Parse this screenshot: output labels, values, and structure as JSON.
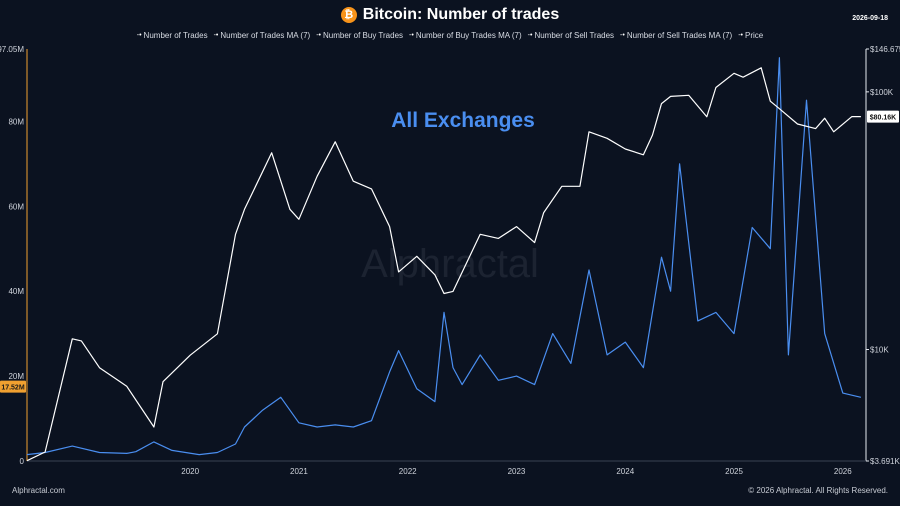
{
  "header": {
    "title": "Bitcoin: Number of trades",
    "date": "2026-09-18",
    "coin_icon": "bitcoin-icon",
    "coin_symbol": "₿"
  },
  "legend": [
    {
      "label": "Number of Trades"
    },
    {
      "label": "Number of Trades MA (7)"
    },
    {
      "label": "Number of Buy Trades"
    },
    {
      "label": "Number of Buy Trades MA (7)"
    },
    {
      "label": "Number of Sell Trades"
    },
    {
      "label": "Number of Sell Trades MA (7)"
    },
    {
      "label": "Price"
    }
  ],
  "annotation": "All Exchanges",
  "watermark": "Alphractal",
  "footer": {
    "left": "Alphractal.com",
    "right": "© 2026 Alphractal. All Rights Reserved."
  },
  "colors": {
    "background": "#0b1220",
    "trades": "#4a8ef0",
    "price": "#ffffff",
    "left_axis": "#f0a030",
    "badge_left": "#f0a030"
  },
  "chart_data": {
    "type": "line",
    "x_axis": {
      "ticks": [
        "2020",
        "2021",
        "2022",
        "2023",
        "2024",
        "2025",
        "2026"
      ],
      "range": [
        "2019-01-01",
        "2026-09-18"
      ]
    },
    "left_axis": {
      "ticks": [
        "0",
        "20M",
        "40M",
        "60M",
        "80M",
        "97.05M"
      ],
      "tick_values": [
        0,
        20000000,
        40000000,
        60000000,
        80000000,
        97050000
      ],
      "range": [
        0,
        97050000
      ]
    },
    "right_axis": {
      "scale": "log",
      "ticks": [
        "$3.691K",
        "$10K",
        "$100K",
        "$146.675K"
      ],
      "tick_values": [
        3691,
        10000,
        100000,
        146675
      ],
      "range": [
        3691,
        146675
      ]
    },
    "badges": {
      "left": "17.52M",
      "right": "$80.16K"
    },
    "series": [
      {
        "name": "Number of Trades",
        "axis": "left",
        "x": [
          "2019-01",
          "2019-03",
          "2019-06",
          "2019-09",
          "2019-12",
          "2020-01",
          "2020-03",
          "2020-05",
          "2020-08",
          "2020-10",
          "2020-12",
          "2021-01",
          "2021-03",
          "2021-05",
          "2021-07",
          "2021-09",
          "2021-11",
          "2022-01",
          "2022-03",
          "2022-05",
          "2022-06",
          "2022-08",
          "2022-10",
          "2022-11",
          "2022-12",
          "2023-01",
          "2023-03",
          "2023-05",
          "2023-07",
          "2023-09",
          "2023-11",
          "2024-01",
          "2024-03",
          "2024-05",
          "2024-07",
          "2024-09",
          "2024-11",
          "2024-12",
          "2025-01",
          "2025-03",
          "2025-05",
          "2025-07",
          "2025-09",
          "2025-11",
          "2025-12",
          "2026-01",
          "2026-03",
          "2026-05",
          "2026-07",
          "2026-09"
        ],
        "values": [
          1500000,
          2000000,
          3500000,
          2000000,
          1800000,
          2200000,
          4500000,
          2500000,
          1500000,
          2000000,
          4000000,
          8000000,
          12000000,
          15000000,
          9000000,
          8000000,
          8500000,
          8000000,
          9500000,
          21000000,
          26000000,
          17000000,
          14000000,
          35000000,
          22000000,
          18000000,
          25000000,
          19000000,
          20000000,
          18000000,
          30000000,
          23000000,
          45000000,
          25000000,
          28000000,
          22000000,
          48000000,
          40000000,
          70000000,
          33000000,
          35000000,
          30000000,
          55000000,
          50000000,
          95000000,
          25000000,
          85000000,
          30000000,
          16000000,
          15000000
        ]
      },
      {
        "name": "Price",
        "axis": "right",
        "x": [
          "2019-01",
          "2019-03",
          "2019-06",
          "2019-07",
          "2019-09",
          "2019-12",
          "2020-03",
          "2020-04",
          "2020-07",
          "2020-10",
          "2020-12",
          "2021-01",
          "2021-04",
          "2021-06",
          "2021-07",
          "2021-09",
          "2021-11",
          "2022-01",
          "2022-03",
          "2022-05",
          "2022-06",
          "2022-08",
          "2022-10",
          "2022-11",
          "2022-12",
          "2023-03",
          "2023-05",
          "2023-07",
          "2023-09",
          "2023-10",
          "2023-12",
          "2024-02",
          "2024-03",
          "2024-05",
          "2024-07",
          "2024-09",
          "2024-10",
          "2024-11",
          "2024-12",
          "2025-02",
          "2025-04",
          "2025-05",
          "2025-07",
          "2025-08",
          "2025-10",
          "2025-11",
          "2025-12",
          "2026-02",
          "2026-04",
          "2026-05",
          "2026-06",
          "2026-08",
          "2026-09"
        ],
        "values": [
          3700,
          4000,
          11000,
          10800,
          8500,
          7200,
          5000,
          7500,
          9500,
          11500,
          28000,
          35000,
          58000,
          35000,
          32000,
          47000,
          64000,
          45000,
          42000,
          30000,
          20000,
          23000,
          19500,
          16500,
          16800,
          28000,
          27000,
          30000,
          26000,
          34000,
          43000,
          43000,
          70000,
          66000,
          60000,
          57000,
          68000,
          90000,
          96000,
          97000,
          80000,
          104000,
          118000,
          114000,
          124000,
          92000,
          86000,
          75000,
          72000,
          79000,
          70000,
          80160,
          80160
        ]
      }
    ]
  }
}
